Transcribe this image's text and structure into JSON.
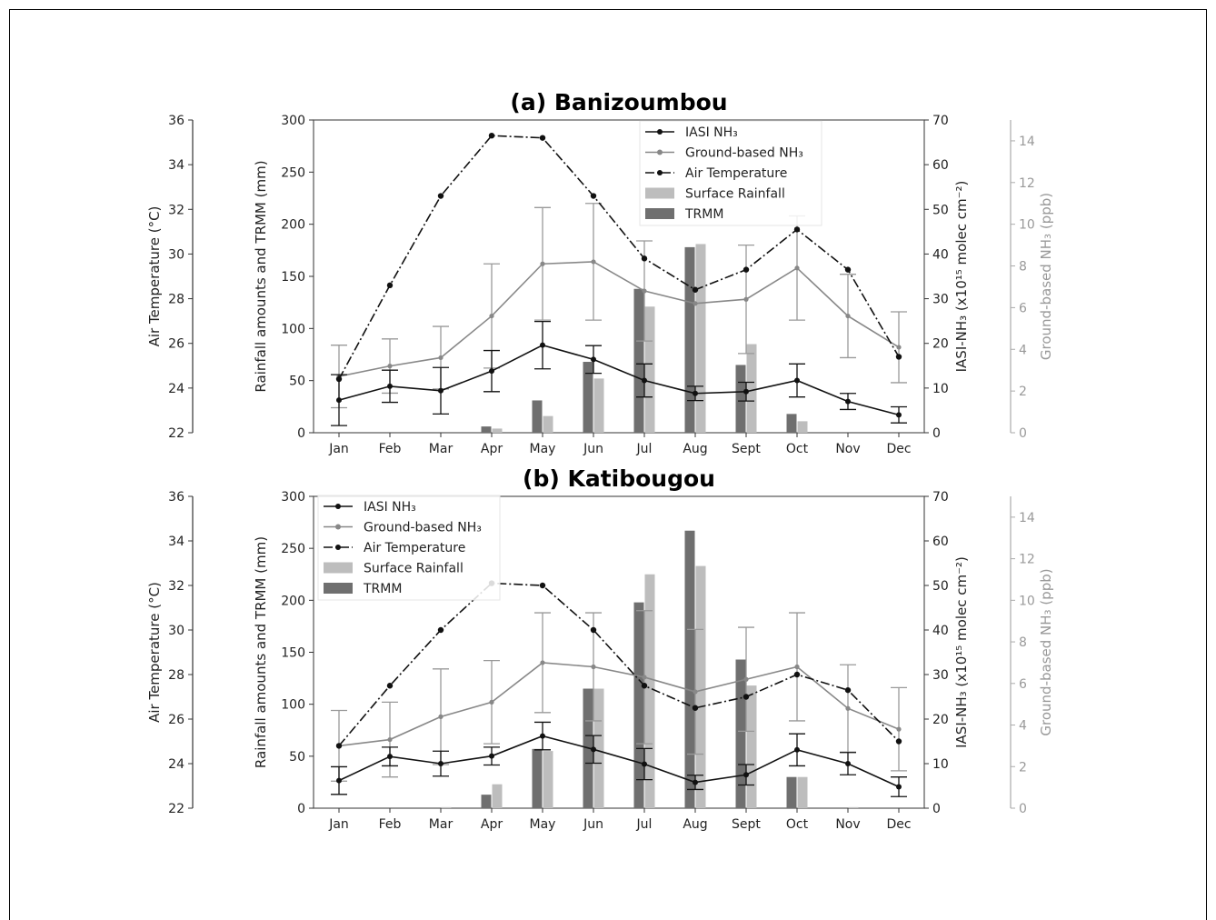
{
  "chart_data": [
    {
      "type": "bar",
      "title": "(a) Banizoumbou",
      "categories": [
        "Jan",
        "Feb",
        "Mar",
        "Apr",
        "May",
        "Jun",
        "Jul",
        "Aug",
        "Sept",
        "Oct",
        "Nov",
        "Dec"
      ],
      "axes": {
        "temp": {
          "label": "Air Temperature (°C)",
          "lim": [
            22,
            36
          ],
          "ticks": [
            "22",
            "24",
            "26",
            "28",
            "30",
            "32",
            "34",
            "36"
          ]
        },
        "rain": {
          "label": "Rainfall amounts and TRMM (mm)",
          "lim": [
            0,
            300
          ],
          "ticks": [
            "0",
            "50",
            "100",
            "150",
            "200",
            "250",
            "300"
          ]
        },
        "iasi": {
          "label": "IASI-NH₃ (x10¹⁵ molec cm⁻²)",
          "lim": [
            0,
            70
          ],
          "ticks": [
            "0",
            "10",
            "20",
            "30",
            "40",
            "50",
            "60",
            "70"
          ]
        },
        "ground": {
          "label": "Ground-based NH₃ (ppb)",
          "lim": [
            0,
            15
          ],
          "ticks": [
            "0",
            "2",
            "4",
            "6",
            "8",
            "10",
            "12",
            "14"
          ]
        }
      },
      "legend": {
        "position": "top-right",
        "entries": {
          "iasi": "IASI NH₃",
          "ground": "Ground-based NH₃",
          "temp": "Air Temperature",
          "rain": "Surface Rainfall",
          "trmm": "TRMM"
        }
      },
      "series": {
        "trmm": [
          0,
          0,
          0,
          6,
          31,
          68,
          138,
          178,
          65,
          18,
          0,
          0
        ],
        "surface_rainfall": [
          0,
          0,
          0,
          4,
          16,
          52,
          121,
          181,
          85,
          11,
          0,
          0
        ],
        "iasi": {
          "values": [
            7.3,
            10.4,
            9.4,
            13.8,
            19.6,
            16.4,
            11.7,
            8.8,
            9.2,
            11.7,
            7.0,
            4.0
          ],
          "err": [
            5.7,
            3.6,
            5.2,
            4.6,
            5.3,
            3.1,
            3.7,
            1.6,
            2.1,
            3.7,
            1.8,
            1.8
          ]
        },
        "ground": {
          "values": [
            2.7,
            3.2,
            3.6,
            5.6,
            8.1,
            8.2,
            6.8,
            6.2,
            6.4,
            7.9,
            5.6,
            4.1
          ],
          "err": [
            1.5,
            1.3,
            1.5,
            2.5,
            2.7,
            2.8,
            2.4,
            0,
            2.6,
            2.5,
            2.0,
            1.7
          ]
        },
        "temperature": [
          24.4,
          28.6,
          32.6,
          35.3,
          35.2,
          32.6,
          29.8,
          28.4,
          29.3,
          31.1,
          29.3,
          25.4
        ]
      }
    },
    {
      "type": "bar",
      "title": "(b) Katibougou",
      "categories": [
        "Jan",
        "Feb",
        "Mar",
        "Apr",
        "May",
        "Jun",
        "Jul",
        "Aug",
        "Sept",
        "Oct",
        "Nov",
        "Dec"
      ],
      "axes": {
        "temp": {
          "label": "Air Temperature (°C)",
          "lim": [
            22,
            36
          ],
          "ticks": [
            "22",
            "24",
            "26",
            "28",
            "30",
            "32",
            "34",
            "36"
          ]
        },
        "rain": {
          "label": "Rainfall amounts and TRMM (mm)",
          "lim": [
            0,
            300
          ],
          "ticks": [
            "0",
            "50",
            "100",
            "150",
            "200",
            "250",
            "300"
          ]
        },
        "iasi": {
          "label": "IASI-NH₃ (x10¹⁵ molec cm⁻²)",
          "lim": [
            0,
            70
          ],
          "ticks": [
            "0",
            "10",
            "20",
            "30",
            "40",
            "50",
            "60",
            "70"
          ]
        },
        "ground": {
          "label": "Ground-based NH₃ (ppb)",
          "lim": [
            0,
            15
          ],
          "ticks": [
            "0",
            "2",
            "4",
            "6",
            "8",
            "10",
            "12",
            "14"
          ]
        }
      },
      "legend": {
        "position": "top-left",
        "entries": {
          "iasi": "IASI NH₃",
          "ground": "Ground-based NH₃",
          "temp": "Air Temperature",
          "rain": "Surface Rainfall",
          "trmm": "TRMM"
        }
      },
      "series": {
        "trmm": [
          0,
          0,
          0,
          13,
          57,
          115,
          198,
          267,
          143,
          30,
          0,
          0
        ],
        "surface_rainfall": [
          0,
          0,
          1,
          23,
          55,
          115,
          225,
          233,
          118,
          30,
          1,
          0
        ],
        "iasi": {
          "values": [
            6.2,
            11.6,
            10.0,
            11.7,
            16.2,
            13.2,
            9.9,
            5.8,
            7.5,
            13.1,
            10.0,
            4.8
          ],
          "err": [
            3.1,
            2.1,
            2.8,
            2.0,
            3.1,
            3.1,
            3.5,
            1.6,
            2.3,
            3.6,
            2.5,
            2.2
          ]
        },
        "ground": {
          "values": [
            3.0,
            3.3,
            4.4,
            5.1,
            7.0,
            6.8,
            6.3,
            5.6,
            6.2,
            6.8,
            4.8,
            3.8
          ],
          "err": [
            1.7,
            1.8,
            2.3,
            2.0,
            2.4,
            2.6,
            3.2,
            3.0,
            2.5,
            2.6,
            2.1,
            2.0
          ]
        },
        "temperature": [
          24.8,
          27.5,
          30.0,
          32.1,
          32.0,
          30.0,
          27.5,
          26.5,
          27.0,
          28.0,
          27.3,
          25.0
        ]
      }
    }
  ]
}
